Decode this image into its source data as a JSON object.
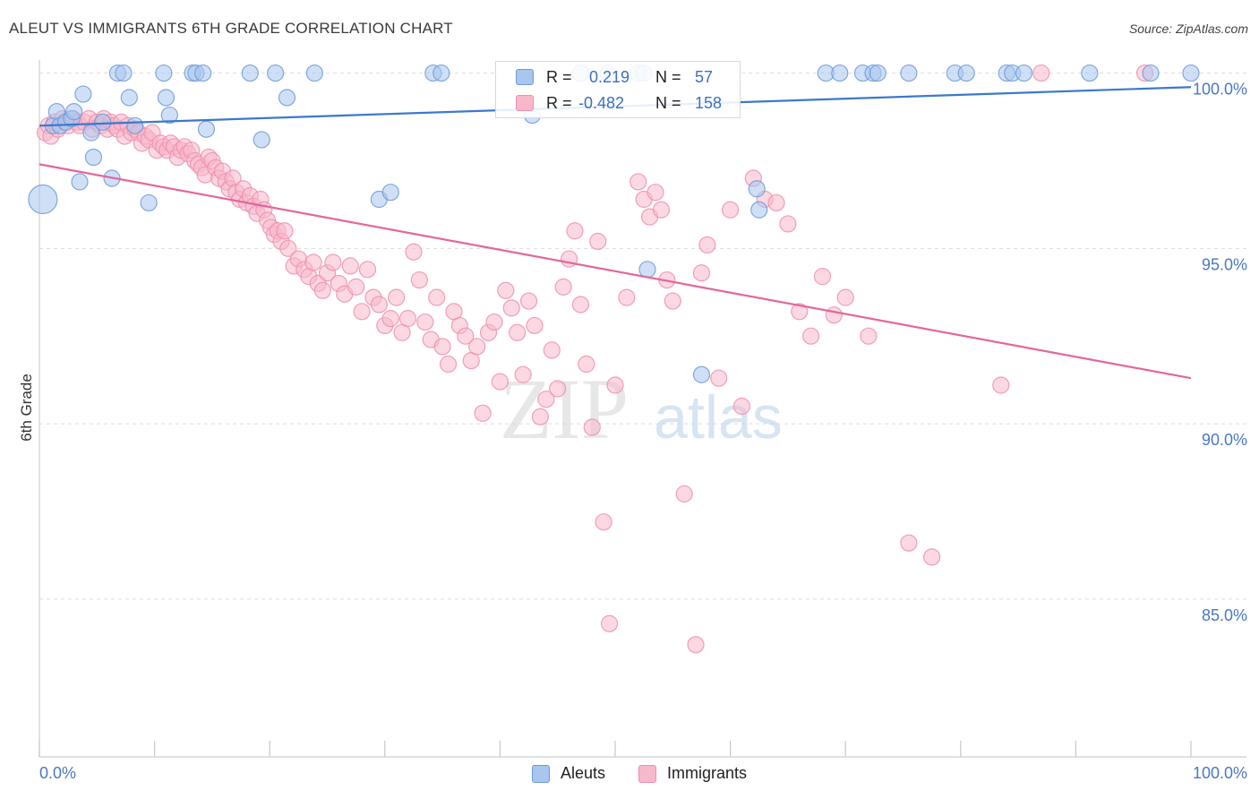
{
  "title": "ALEUT VS IMMIGRANTS 6TH GRADE CORRELATION CHART",
  "source": "Source: ZipAtlas.com",
  "watermark": {
    "zip": "ZIP",
    "atlas": "atlas"
  },
  "colors": {
    "aleut_fill": "#a8c6ee",
    "aleut_stroke": "#6f9ad8",
    "aleut_line": "#3d78cc",
    "immigrant_fill": "#f7b8cb",
    "immigrant_stroke": "#ef8fae",
    "immigrant_line": "#e2679a",
    "tick_label": "#4a78c2",
    "grid": "#dcdcdc"
  },
  "legend": {
    "r_label": "R =",
    "n_label": "N =",
    "aleut_r": "0.219",
    "aleut_n": "57",
    "immigrant_r": "-0.482",
    "immigrant_n": "158"
  },
  "bottom_legend": {
    "aleut": "Aleuts",
    "immigrant": "Immigrants"
  },
  "chart_data": {
    "type": "scatter",
    "title": "ALEUT VS IMMIGRANTS 6TH GRADE CORRELATION CHART",
    "xlabel": "",
    "ylabel": "6th Grade",
    "xlim": [
      0,
      100
    ],
    "ylim": [
      80.5,
      100.5
    ],
    "x_tick_labels": [
      "0.0%",
      "100.0%"
    ],
    "y_ticks": [
      85,
      90,
      95,
      100
    ],
    "y_tick_labels": [
      "85.0%",
      "90.0%",
      "95.0%",
      "100.0%"
    ],
    "grid": true,
    "legend_position": "top-center",
    "series": [
      {
        "name": "Aleuts",
        "R": 0.219,
        "N": 57,
        "trend": {
          "x": [
            0,
            100
          ],
          "y": [
            98.5,
            99.6
          ]
        },
        "points": [
          [
            0.3,
            96.4
          ],
          [
            1.2,
            98.5
          ],
          [
            1.5,
            98.9
          ],
          [
            1.8,
            98.5
          ],
          [
            2.3,
            98.6
          ],
          [
            2.8,
            98.7
          ],
          [
            3.0,
            98.9
          ],
          [
            3.5,
            96.9
          ],
          [
            3.8,
            99.4
          ],
          [
            4.5,
            98.3
          ],
          [
            4.7,
            97.6
          ],
          [
            5.5,
            98.6
          ],
          [
            6.3,
            97.0
          ],
          [
            6.8,
            100.0
          ],
          [
            7.3,
            100.0
          ],
          [
            7.8,
            99.3
          ],
          [
            8.3,
            98.5
          ],
          [
            9.5,
            96.3
          ],
          [
            10.8,
            100.0
          ],
          [
            11.0,
            99.3
          ],
          [
            11.3,
            98.8
          ],
          [
            13.3,
            100.0
          ],
          [
            13.6,
            100.0
          ],
          [
            14.2,
            100.0
          ],
          [
            14.5,
            98.4
          ],
          [
            18.3,
            100.0
          ],
          [
            19.3,
            98.1
          ],
          [
            20.5,
            100.0
          ],
          [
            21.5,
            99.3
          ],
          [
            23.9,
            100.0
          ],
          [
            29.5,
            96.4
          ],
          [
            30.5,
            96.6
          ],
          [
            34.2,
            100.0
          ],
          [
            34.9,
            100.0
          ],
          [
            42.8,
            98.8
          ],
          [
            47.0,
            100.0
          ],
          [
            49.4,
            100.0
          ],
          [
            52.0,
            100.0
          ],
          [
            52.5,
            100.0
          ],
          [
            52.8,
            94.4
          ],
          [
            57.5,
            91.4
          ],
          [
            62.3,
            96.7
          ],
          [
            62.5,
            96.1
          ],
          [
            68.3,
            100.0
          ],
          [
            69.5,
            100.0
          ],
          [
            71.5,
            100.0
          ],
          [
            72.4,
            100.0
          ],
          [
            72.8,
            100.0
          ],
          [
            75.5,
            100.0
          ],
          [
            79.5,
            100.0
          ],
          [
            80.5,
            100.0
          ],
          [
            84.0,
            100.0
          ],
          [
            84.5,
            100.0
          ],
          [
            85.5,
            100.0
          ],
          [
            91.2,
            100.0
          ],
          [
            96.5,
            100.0
          ],
          [
            100.0,
            100.0
          ]
        ]
      },
      {
        "name": "Immigrants",
        "R": -0.482,
        "N": 158,
        "trend": {
          "x": [
            0,
            100
          ],
          "y": [
            97.4,
            91.3
          ]
        },
        "points": [
          [
            0.5,
            98.3
          ],
          [
            0.8,
            98.5
          ],
          [
            1.0,
            98.2
          ],
          [
            1.3,
            98.6
          ],
          [
            1.6,
            98.4
          ],
          [
            2.0,
            98.7
          ],
          [
            2.2,
            98.6
          ],
          [
            2.5,
            98.5
          ],
          [
            2.9,
            98.7
          ],
          [
            3.3,
            98.6
          ],
          [
            3.5,
            98.5
          ],
          [
            3.9,
            98.6
          ],
          [
            4.3,
            98.7
          ],
          [
            4.6,
            98.4
          ],
          [
            5.0,
            98.6
          ],
          [
            5.3,
            98.5
          ],
          [
            5.6,
            98.7
          ],
          [
            5.9,
            98.4
          ],
          [
            6.2,
            98.6
          ],
          [
            6.5,
            98.5
          ],
          [
            6.8,
            98.4
          ],
          [
            7.1,
            98.6
          ],
          [
            7.4,
            98.2
          ],
          [
            7.7,
            98.5
          ],
          [
            8.0,
            98.3
          ],
          [
            8.3,
            98.4
          ],
          [
            8.6,
            98.3
          ],
          [
            8.9,
            98.0
          ],
          [
            9.2,
            98.2
          ],
          [
            9.5,
            98.1
          ],
          [
            9.8,
            98.3
          ],
          [
            10.2,
            97.8
          ],
          [
            10.5,
            98.0
          ],
          [
            10.8,
            97.9
          ],
          [
            11.1,
            97.8
          ],
          [
            11.4,
            98.0
          ],
          [
            11.7,
            97.9
          ],
          [
            12.0,
            97.6
          ],
          [
            12.3,
            97.8
          ],
          [
            12.6,
            97.9
          ],
          [
            12.9,
            97.7
          ],
          [
            13.2,
            97.8
          ],
          [
            13.5,
            97.5
          ],
          [
            13.8,
            97.4
          ],
          [
            14.1,
            97.3
          ],
          [
            14.4,
            97.1
          ],
          [
            14.7,
            97.6
          ],
          [
            15.0,
            97.5
          ],
          [
            15.3,
            97.3
          ],
          [
            15.6,
            97.0
          ],
          [
            15.9,
            97.2
          ],
          [
            16.2,
            96.9
          ],
          [
            16.5,
            96.7
          ],
          [
            16.8,
            97.0
          ],
          [
            17.1,
            96.6
          ],
          [
            17.4,
            96.4
          ],
          [
            17.7,
            96.7
          ],
          [
            18.0,
            96.3
          ],
          [
            18.3,
            96.5
          ],
          [
            18.6,
            96.2
          ],
          [
            18.9,
            96.0
          ],
          [
            19.2,
            96.4
          ],
          [
            19.5,
            96.1
          ],
          [
            19.8,
            95.8
          ],
          [
            20.1,
            95.6
          ],
          [
            20.4,
            95.4
          ],
          [
            20.7,
            95.5
          ],
          [
            21.0,
            95.2
          ],
          [
            21.3,
            95.5
          ],
          [
            21.6,
            95.0
          ],
          [
            22.1,
            94.5
          ],
          [
            22.5,
            94.7
          ],
          [
            23.0,
            94.4
          ],
          [
            23.4,
            94.2
          ],
          [
            23.8,
            94.6
          ],
          [
            24.2,
            94.0
          ],
          [
            24.6,
            93.8
          ],
          [
            25.0,
            94.3
          ],
          [
            25.5,
            94.6
          ],
          [
            26.0,
            94.0
          ],
          [
            26.5,
            93.7
          ],
          [
            27.0,
            94.5
          ],
          [
            27.5,
            93.9
          ],
          [
            28.0,
            93.2
          ],
          [
            28.5,
            94.4
          ],
          [
            29.0,
            93.6
          ],
          [
            29.5,
            93.4
          ],
          [
            30.0,
            92.8
          ],
          [
            30.5,
            93.0
          ],
          [
            31.0,
            93.6
          ],
          [
            31.5,
            92.6
          ],
          [
            32.0,
            93.0
          ],
          [
            32.5,
            94.9
          ],
          [
            33.0,
            94.1
          ],
          [
            33.5,
            92.9
          ],
          [
            34.0,
            92.4
          ],
          [
            34.5,
            93.6
          ],
          [
            35.0,
            92.2
          ],
          [
            35.5,
            91.7
          ],
          [
            36.0,
            93.2
          ],
          [
            36.5,
            92.8
          ],
          [
            37.0,
            92.5
          ],
          [
            37.5,
            91.8
          ],
          [
            38.0,
            92.2
          ],
          [
            38.5,
            90.3
          ],
          [
            39.0,
            92.6
          ],
          [
            39.5,
            92.9
          ],
          [
            40.0,
            91.2
          ],
          [
            40.5,
            93.8
          ],
          [
            41.0,
            93.3
          ],
          [
            41.5,
            92.6
          ],
          [
            42.0,
            91.4
          ],
          [
            42.5,
            93.5
          ],
          [
            43.0,
            92.8
          ],
          [
            43.5,
            90.2
          ],
          [
            44.0,
            90.7
          ],
          [
            44.5,
            92.1
          ],
          [
            45.0,
            91.0
          ],
          [
            45.5,
            93.9
          ],
          [
            46.0,
            94.7
          ],
          [
            46.5,
            95.5
          ],
          [
            47.0,
            93.4
          ],
          [
            47.5,
            91.7
          ],
          [
            48.0,
            89.9
          ],
          [
            48.5,
            95.2
          ],
          [
            49.0,
            87.2
          ],
          [
            49.5,
            84.3
          ],
          [
            50.0,
            91.1
          ],
          [
            51.0,
            93.6
          ],
          [
            52.0,
            96.9
          ],
          [
            52.5,
            96.4
          ],
          [
            53.0,
            95.9
          ],
          [
            53.5,
            96.6
          ],
          [
            54.0,
            96.1
          ],
          [
            54.5,
            94.1
          ],
          [
            55.0,
            93.5
          ],
          [
            56.0,
            88.0
          ],
          [
            57.0,
            83.7
          ],
          [
            57.5,
            94.3
          ],
          [
            58.0,
            95.1
          ],
          [
            59.0,
            91.3
          ],
          [
            60.0,
            96.1
          ],
          [
            61.0,
            90.5
          ],
          [
            62.0,
            97.0
          ],
          [
            63.0,
            96.4
          ],
          [
            64.0,
            96.3
          ],
          [
            65.0,
            95.7
          ],
          [
            66.0,
            93.2
          ],
          [
            67.0,
            92.5
          ],
          [
            68.0,
            94.2
          ],
          [
            69.0,
            93.1
          ],
          [
            70.0,
            93.6
          ],
          [
            72.0,
            92.5
          ],
          [
            75.5,
            86.6
          ],
          [
            77.5,
            86.2
          ],
          [
            83.5,
            91.1
          ],
          [
            87.0,
            100.0
          ],
          [
            96.0,
            100.0
          ]
        ]
      }
    ]
  }
}
